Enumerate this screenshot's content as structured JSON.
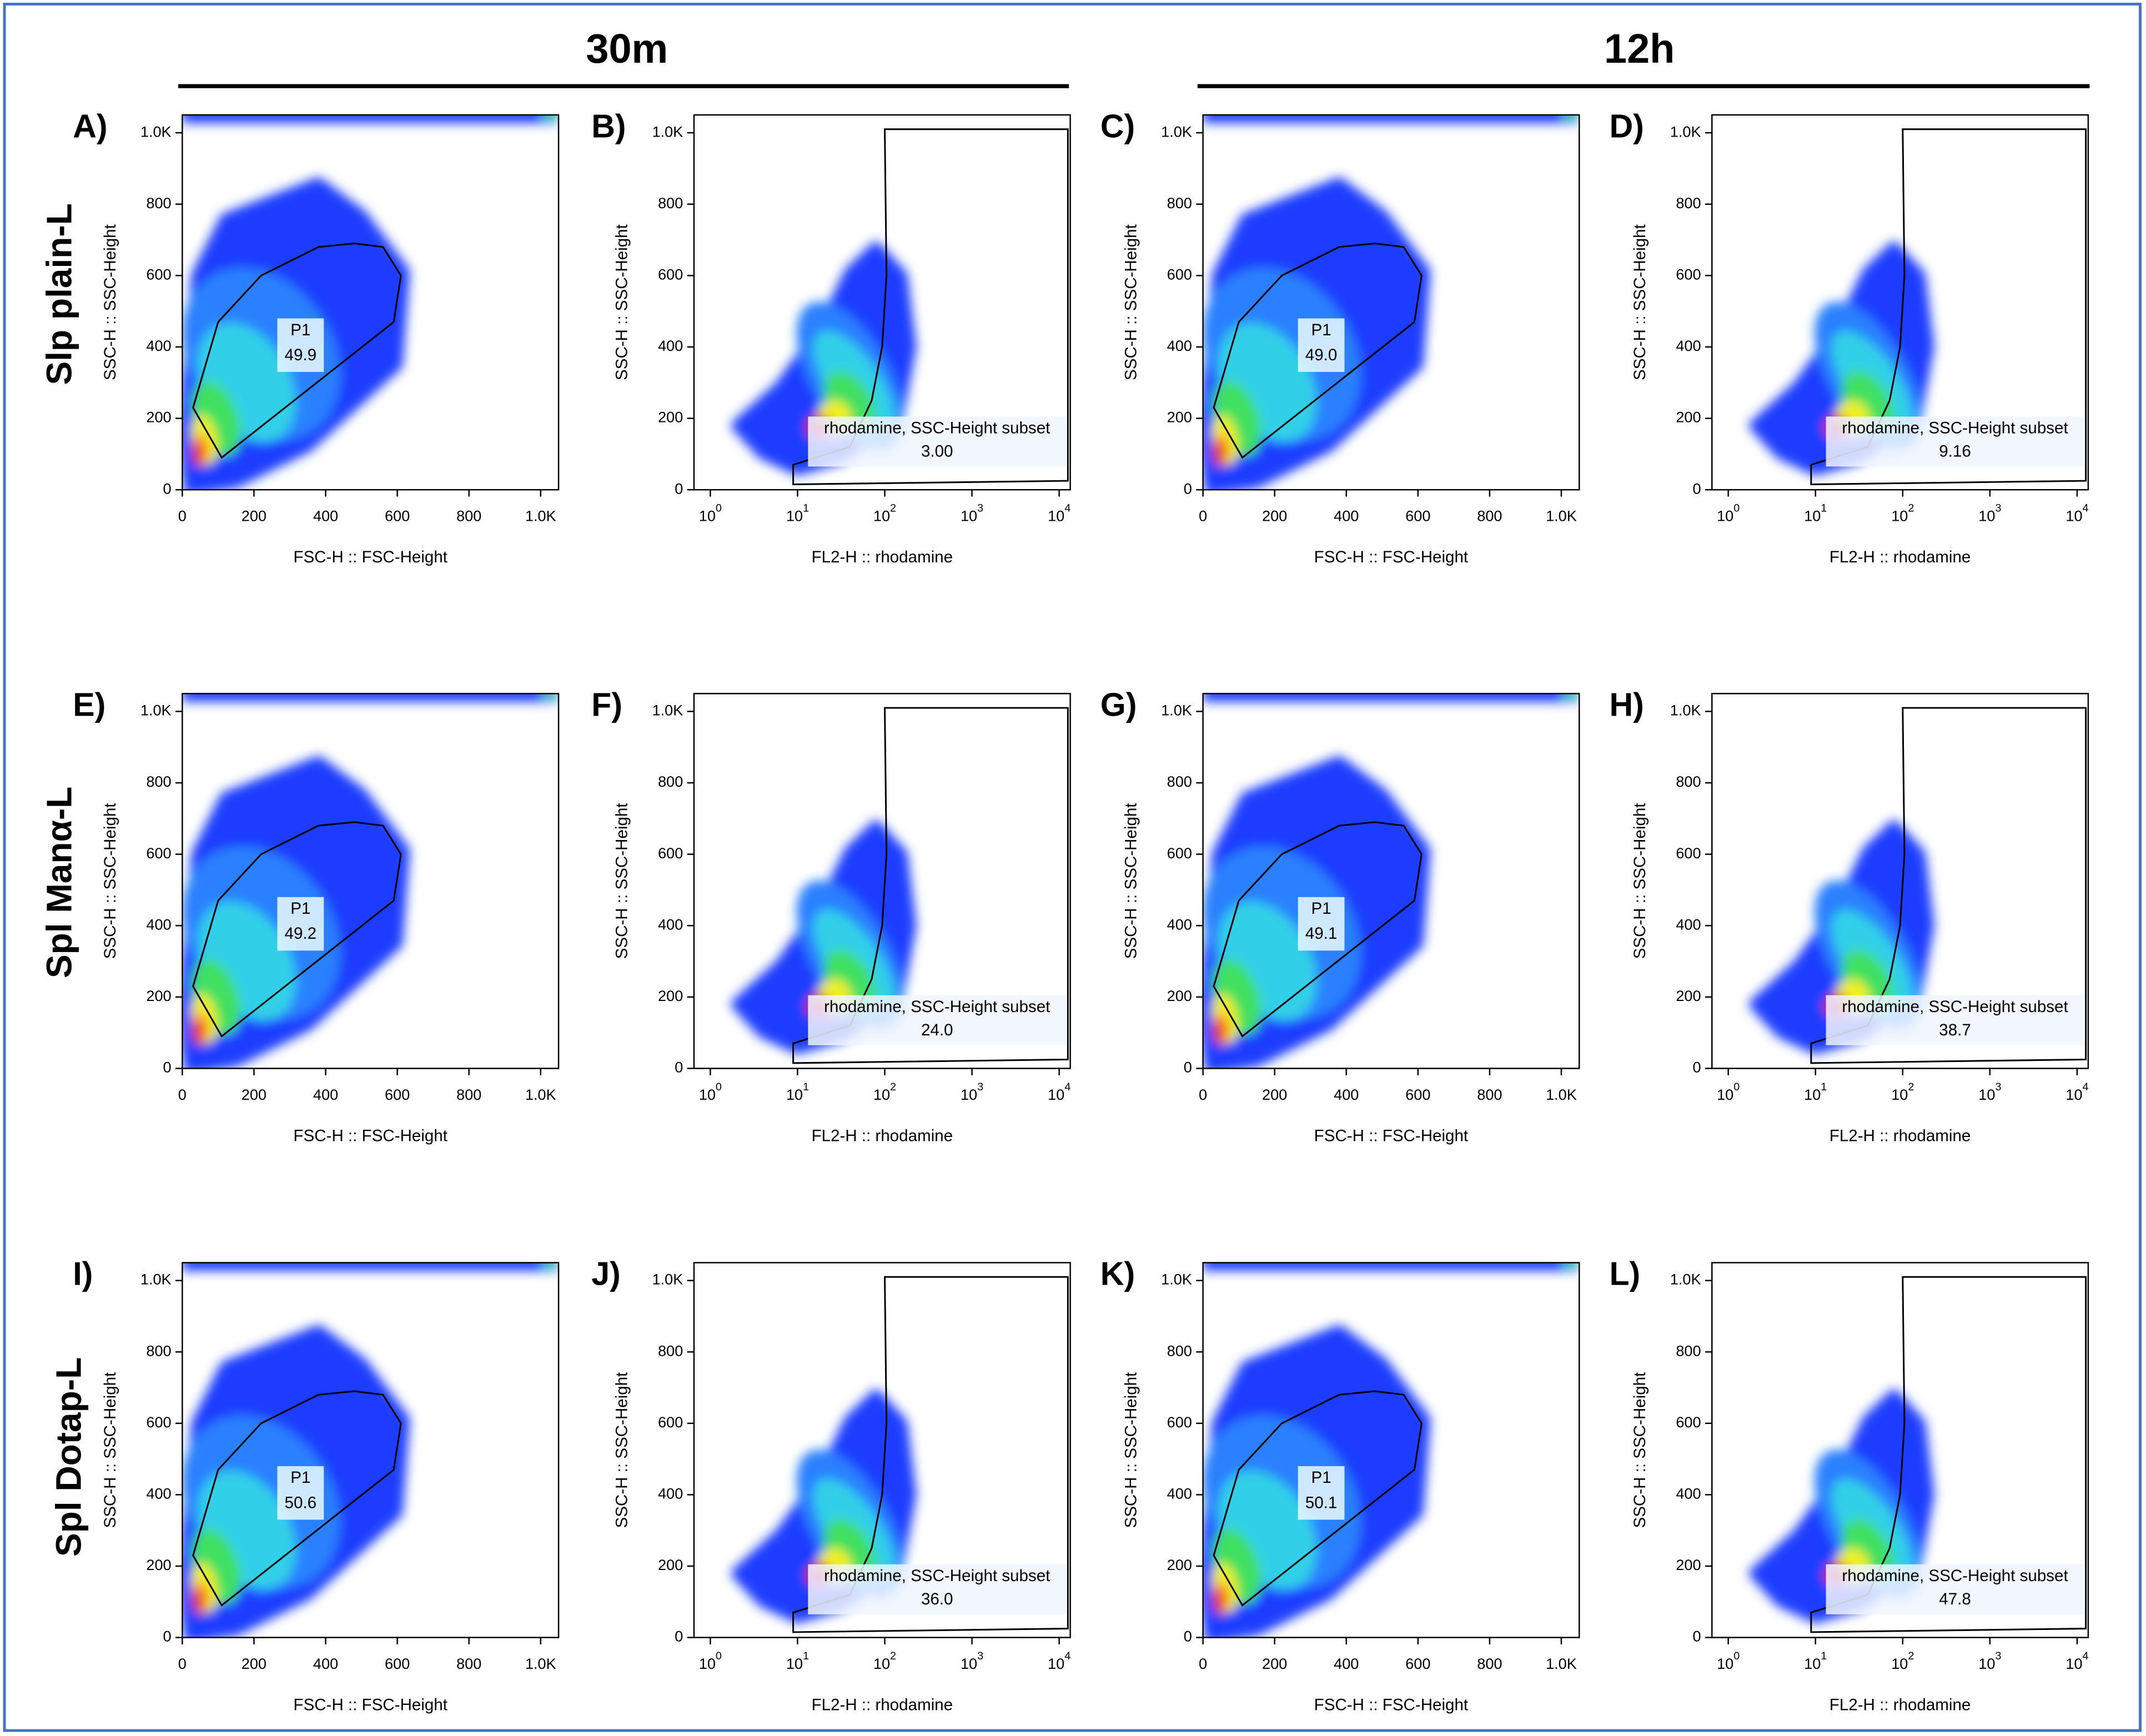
{
  "column_headers": [
    "30m",
    "12h"
  ],
  "row_labels": [
    "Slp plain-L",
    "Spl Manα-L",
    "Spl Dotap-L"
  ],
  "chart_data": [
    {
      "type": "density",
      "panel": "A)",
      "xlabel": "FSC-H :: FSC-Height",
      "ylabel": "SSC-H :: SSC-Height",
      "xlim": [
        0,
        1050
      ],
      "ylim": [
        0,
        1050
      ],
      "xticks": [
        0,
        200,
        400,
        600,
        800,
        {
          "value": 1000,
          "label": "1.0K"
        }
      ],
      "yticks": [
        0,
        200,
        400,
        600,
        800,
        {
          "value": 1000,
          "label": "1.0K"
        }
      ],
      "gate": {
        "name": "P1",
        "value": 49.9
      }
    },
    {
      "type": "density",
      "panel": "B)",
      "xscale": "log",
      "xlabel": "FL2-H :: rhodamine",
      "ylabel": "SSC-H :: SSC-Height",
      "xlim": [
        0.65,
        13400
      ],
      "ylim": [
        0,
        1050
      ],
      "xticks": [
        {
          "value": 1,
          "label": "10^0"
        },
        {
          "value": 10,
          "label": "10^1"
        },
        {
          "value": 100,
          "label": "10^2"
        },
        {
          "value": 1000,
          "label": "10^3"
        },
        {
          "value": 10000,
          "label": "10^4"
        }
      ],
      "yticks": [
        0,
        200,
        400,
        600,
        800,
        {
          "value": 1000,
          "label": "1.0K"
        }
      ],
      "gate": {
        "name": "rhodamine, SSC-Height subset",
        "value": 3,
        "value_label": "3.00"
      }
    },
    {
      "type": "density",
      "panel": "C)",
      "xlabel": "FSC-H :: FSC-Height",
      "ylabel": "SSC-H :: SSC-Height",
      "xlim": [
        0,
        1050
      ],
      "ylim": [
        0,
        1050
      ],
      "xticks": [
        0,
        200,
        400,
        600,
        800,
        {
          "value": 1000,
          "label": "1.0K"
        }
      ],
      "yticks": [
        0,
        200,
        400,
        600,
        800,
        {
          "value": 1000,
          "label": "1.0K"
        }
      ],
      "gate": {
        "name": "P1",
        "value": 49,
        "value_label": "49.0"
      }
    },
    {
      "type": "density",
      "panel": "D)",
      "xscale": "log",
      "xlabel": "FL2-H :: rhodamine",
      "ylabel": "SSC-H :: SSC-Height",
      "xlim": [
        0.65,
        13400
      ],
      "ylim": [
        0,
        1050
      ],
      "xticks": [
        {
          "value": 1,
          "label": "10^0"
        },
        {
          "value": 10,
          "label": "10^1"
        },
        {
          "value": 100,
          "label": "10^2"
        },
        {
          "value": 1000,
          "label": "10^3"
        },
        {
          "value": 10000,
          "label": "10^4"
        }
      ],
      "yticks": [
        0,
        200,
        400,
        600,
        800,
        {
          "value": 1000,
          "label": "1.0K"
        }
      ],
      "gate": {
        "name": "rhodamine, SSC-Height subset",
        "value": 9.16
      }
    },
    {
      "type": "density",
      "panel": "E)",
      "xlabel": "FSC-H :: FSC-Height",
      "ylabel": "SSC-H :: SSC-Height",
      "xlim": [
        0,
        1050
      ],
      "ylim": [
        0,
        1050
      ],
      "xticks": [
        0,
        200,
        400,
        600,
        800,
        {
          "value": 1000,
          "label": "1.0K"
        }
      ],
      "yticks": [
        0,
        200,
        400,
        600,
        800,
        {
          "value": 1000,
          "label": "1.0K"
        }
      ],
      "gate": {
        "name": "P1",
        "value": 49.2
      }
    },
    {
      "type": "density",
      "panel": "F)",
      "xscale": "log",
      "xlabel": "FL2-H :: rhodamine",
      "ylabel": "SSC-H :: SSC-Height",
      "xlim": [
        0.65,
        13400
      ],
      "ylim": [
        0,
        1050
      ],
      "xticks": [
        {
          "value": 1,
          "label": "10^0"
        },
        {
          "value": 10,
          "label": "10^1"
        },
        {
          "value": 100,
          "label": "10^2"
        },
        {
          "value": 1000,
          "label": "10^3"
        },
        {
          "value": 10000,
          "label": "10^4"
        }
      ],
      "yticks": [
        0,
        200,
        400,
        600,
        800,
        {
          "value": 1000,
          "label": "1.0K"
        }
      ],
      "gate": {
        "name": "rhodamine, SSC-Height subset",
        "value": 24,
        "value_label": "24.0"
      }
    },
    {
      "type": "density",
      "panel": "G)",
      "xlabel": "FSC-H :: FSC-Height",
      "ylabel": "SSC-H :: SSC-Height",
      "xlim": [
        0,
        1050
      ],
      "ylim": [
        0,
        1050
      ],
      "xticks": [
        0,
        200,
        400,
        600,
        800,
        {
          "value": 1000,
          "label": "1.0K"
        }
      ],
      "yticks": [
        0,
        200,
        400,
        600,
        800,
        {
          "value": 1000,
          "label": "1.0K"
        }
      ],
      "gate": {
        "name": "P1",
        "value": 49.1
      }
    },
    {
      "type": "density",
      "panel": "H)",
      "xscale": "log",
      "xlabel": "FL2-H :: rhodamine",
      "ylabel": "SSC-H :: SSC-Height",
      "xlim": [
        0.65,
        13400
      ],
      "ylim": [
        0,
        1050
      ],
      "xticks": [
        {
          "value": 1,
          "label": "10^0"
        },
        {
          "value": 10,
          "label": "10^1"
        },
        {
          "value": 100,
          "label": "10^2"
        },
        {
          "value": 1000,
          "label": "10^3"
        },
        {
          "value": 10000,
          "label": "10^4"
        }
      ],
      "yticks": [
        0,
        200,
        400,
        600,
        800,
        {
          "value": 1000,
          "label": "1.0K"
        }
      ],
      "gate": {
        "name": "rhodamine, SSC-Height subset",
        "value": 38.7
      }
    },
    {
      "type": "density",
      "panel": "I)",
      "xlabel": "FSC-H :: FSC-Height",
      "ylabel": "SSC-H :: SSC-Height",
      "xlim": [
        0,
        1050
      ],
      "ylim": [
        0,
        1050
      ],
      "xticks": [
        0,
        200,
        400,
        600,
        800,
        {
          "value": 1000,
          "label": "1.0K"
        }
      ],
      "yticks": [
        0,
        200,
        400,
        600,
        800,
        {
          "value": 1000,
          "label": "1.0K"
        }
      ],
      "gate": {
        "name": "P1",
        "value": 50.6
      }
    },
    {
      "type": "density",
      "panel": "J)",
      "xscale": "log",
      "xlabel": "FL2-H :: rhodamine",
      "ylabel": "SSC-H :: SSC-Height",
      "xlim": [
        0.65,
        13400
      ],
      "ylim": [
        0,
        1050
      ],
      "xticks": [
        {
          "value": 1,
          "label": "10^0"
        },
        {
          "value": 10,
          "label": "10^1"
        },
        {
          "value": 100,
          "label": "10^2"
        },
        {
          "value": 1000,
          "label": "10^3"
        },
        {
          "value": 10000,
          "label": "10^4"
        }
      ],
      "yticks": [
        0,
        200,
        400,
        600,
        800,
        {
          "value": 1000,
          "label": "1.0K"
        }
      ],
      "gate": {
        "name": "rhodamine, SSC-Height subset",
        "value": 36,
        "value_label": "36.0"
      }
    },
    {
      "type": "density",
      "panel": "K)",
      "xlabel": "FSC-H :: FSC-Height",
      "ylabel": "SSC-H :: SSC-Height",
      "xlim": [
        0,
        1050
      ],
      "ylim": [
        0,
        1050
      ],
      "xticks": [
        0,
        200,
        400,
        600,
        800,
        {
          "value": 1000,
          "label": "1.0K"
        }
      ],
      "yticks": [
        0,
        200,
        400,
        600,
        800,
        {
          "value": 1000,
          "label": "1.0K"
        }
      ],
      "gate": {
        "name": "P1",
        "value": 50.1
      }
    },
    {
      "type": "density",
      "panel": "L)",
      "xscale": "log",
      "xlabel": "FL2-H :: rhodamine",
      "ylabel": "SSC-H :: SSC-Height",
      "xlim": [
        0.65,
        13400
      ],
      "ylim": [
        0,
        1050
      ],
      "xticks": [
        {
          "value": 1,
          "label": "10^0"
        },
        {
          "value": 10,
          "label": "10^1"
        },
        {
          "value": 100,
          "label": "10^2"
        },
        {
          "value": 1000,
          "label": "10^3"
        },
        {
          "value": 10000,
          "label": "10^4"
        }
      ],
      "yticks": [
        0,
        200,
        400,
        600,
        800,
        {
          "value": 1000,
          "label": "1.0K"
        }
      ],
      "gate": {
        "name": "rhodamine, SSC-Height subset",
        "value": 47.8
      }
    }
  ]
}
